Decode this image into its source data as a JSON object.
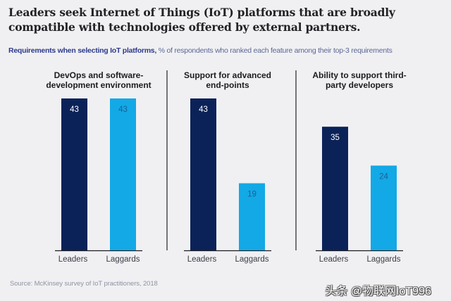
{
  "title": "Leaders seek Internet of Things (IoT) platforms that are broadly compatible with technologies offered by external partners.",
  "subtitle": {
    "bold": "Requirements when selecting IoT platforms,",
    "rest": " % of respondents who ranked each feature among their top-3 requirements"
  },
  "source": "Source: McKinsey survey of IoT practitioners, 2018",
  "watermark": "头条 @物联网IoT996",
  "colors": {
    "leaders": "#0b2259",
    "laggards": "#12a9e6",
    "leaders_label": "#ffffff",
    "laggards_label": "#1d5e96",
    "divider": "#55565c",
    "axis": "#1b1b20"
  },
  "chart_data": {
    "type": "bar",
    "title": "Requirements when selecting IoT platforms, % of respondents who ranked each feature among their top-3 requirements",
    "xlabel": "",
    "ylabel": "% of respondents",
    "ylim": [
      0,
      43
    ],
    "grid": false,
    "legend": "none",
    "categories": [
      "Leaders",
      "Laggards"
    ],
    "panels": [
      {
        "title_lines": [
          "DevOps and software-",
          "development environment"
        ],
        "values": [
          43,
          43
        ]
      },
      {
        "title_lines": [
          "Support for advanced",
          "end-points"
        ],
        "values": [
          43,
          19
        ]
      },
      {
        "title_lines": [
          "Ability to support third-",
          "party developers"
        ],
        "values": [
          35,
          24
        ]
      }
    ]
  }
}
